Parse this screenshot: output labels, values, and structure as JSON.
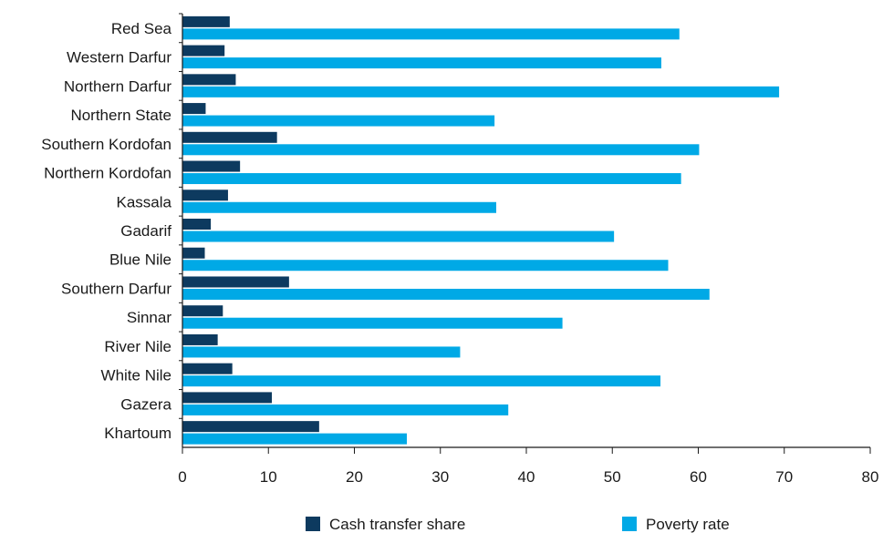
{
  "chart_data": {
    "type": "bar",
    "orientation": "horizontal",
    "categories": [
      "Red Sea",
      "Western Darfur",
      "Northern Darfur",
      "Northern State",
      "Southern Kordofan",
      "Northern Kordofan",
      "Kassala",
      "Gadarif",
      "Blue Nile",
      "Southern Darfur",
      "Sinnar",
      "River Nile",
      "White Nile",
      "Gazera",
      "Khartoum"
    ],
    "series": [
      {
        "name": "Cash transfer share",
        "color": "#0d3a5f",
        "values": [
          5.5,
          4.9,
          6.2,
          2.7,
          11.0,
          6.7,
          5.3,
          3.3,
          2.6,
          12.4,
          4.7,
          4.1,
          5.8,
          10.4,
          15.9
        ]
      },
      {
        "name": "Poverty rate",
        "color": "#00a9e6",
        "values": [
          57.8,
          55.7,
          69.4,
          36.3,
          60.1,
          58.0,
          36.5,
          50.2,
          56.5,
          61.3,
          44.2,
          32.3,
          55.6,
          37.9,
          26.1
        ]
      }
    ],
    "xlim": [
      0,
      80
    ],
    "xticks": [
      0,
      10,
      20,
      30,
      40,
      50,
      60,
      70,
      80
    ],
    "title": "",
    "xlabel": "",
    "ylabel": "",
    "grid": false,
    "legend_position": "bottom"
  }
}
